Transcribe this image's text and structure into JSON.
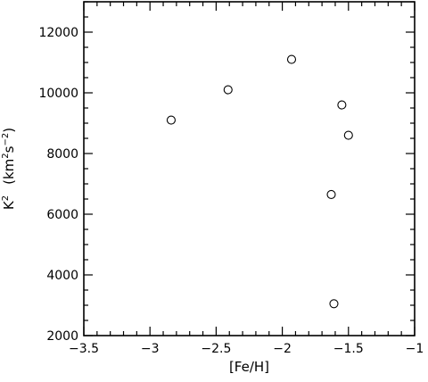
{
  "chart_data": {
    "type": "scatter",
    "xlabel": "[Fe/H]",
    "ylabel_parts": {
      "main": "K",
      "main_sup": "2",
      "unit_open": "(km",
      "unit_sup1": "2",
      "unit_mid": "s",
      "unit_sup2": "−2",
      "unit_close": ")"
    },
    "xlim": [
      -3.5,
      -1.0
    ],
    "ylim": [
      2000,
      13000
    ],
    "xticks_major": [
      -3.5,
      -3.0,
      -2.5,
      -2.0,
      -1.5,
      -1.0
    ],
    "xtick_labels": [
      "−3.5",
      "−3",
      "−2.5",
      "−2",
      "−1.5",
      "−1"
    ],
    "xticks_minor_step": 0.1,
    "yticks_major": [
      2000,
      4000,
      6000,
      8000,
      10000,
      12000
    ],
    "ytick_labels": [
      "2000",
      "4000",
      "6000",
      "8000",
      "10000",
      "12000"
    ],
    "yticks_minor_step": 500,
    "marker": "open-circle",
    "points": [
      {
        "x": -2.84,
        "y": 9100
      },
      {
        "x": -2.41,
        "y": 10100
      },
      {
        "x": -1.93,
        "y": 11100
      },
      {
        "x": -1.55,
        "y": 9600
      },
      {
        "x": -1.5,
        "y": 8600
      },
      {
        "x": -1.63,
        "y": 6650
      },
      {
        "x": -1.61,
        "y": 3050
      }
    ],
    "grid": false
  }
}
